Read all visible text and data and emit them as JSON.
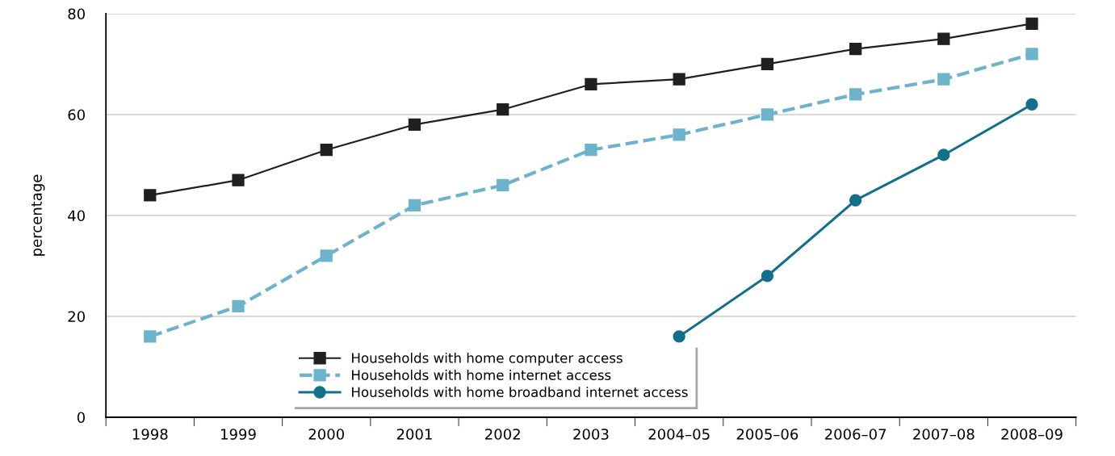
{
  "chart_data": {
    "type": "line",
    "ylabel": "percentage",
    "categories": [
      "1998",
      "1999",
      "2000",
      "2001",
      "2002",
      "2003",
      "2004–05",
      "2005–06",
      "2006–07",
      "2007–08",
      "2008–09"
    ],
    "series": [
      {
        "name": "Households with home computer access",
        "color": "#231f20",
        "marker": "square",
        "line_style": "solid",
        "values": [
          44,
          47,
          53,
          58,
          61,
          66,
          67,
          70,
          73,
          75,
          78
        ]
      },
      {
        "name": "Households with home internet access",
        "color": "#6db3cc",
        "marker": "square",
        "line_style": "dashed",
        "values": [
          16,
          22,
          32,
          42,
          46,
          53,
          56,
          60,
          64,
          67,
          72
        ]
      },
      {
        "name": "Households with home broadband internet access",
        "color": "#13708c",
        "marker": "circle",
        "line_style": "solid",
        "values": [
          null,
          null,
          null,
          null,
          null,
          null,
          16,
          28,
          43,
          52,
          62
        ]
      }
    ],
    "ylim": [
      0,
      80
    ],
    "yticks": [
      0,
      20,
      40,
      60,
      80
    ],
    "grid": "y",
    "legend": "bottom"
  }
}
